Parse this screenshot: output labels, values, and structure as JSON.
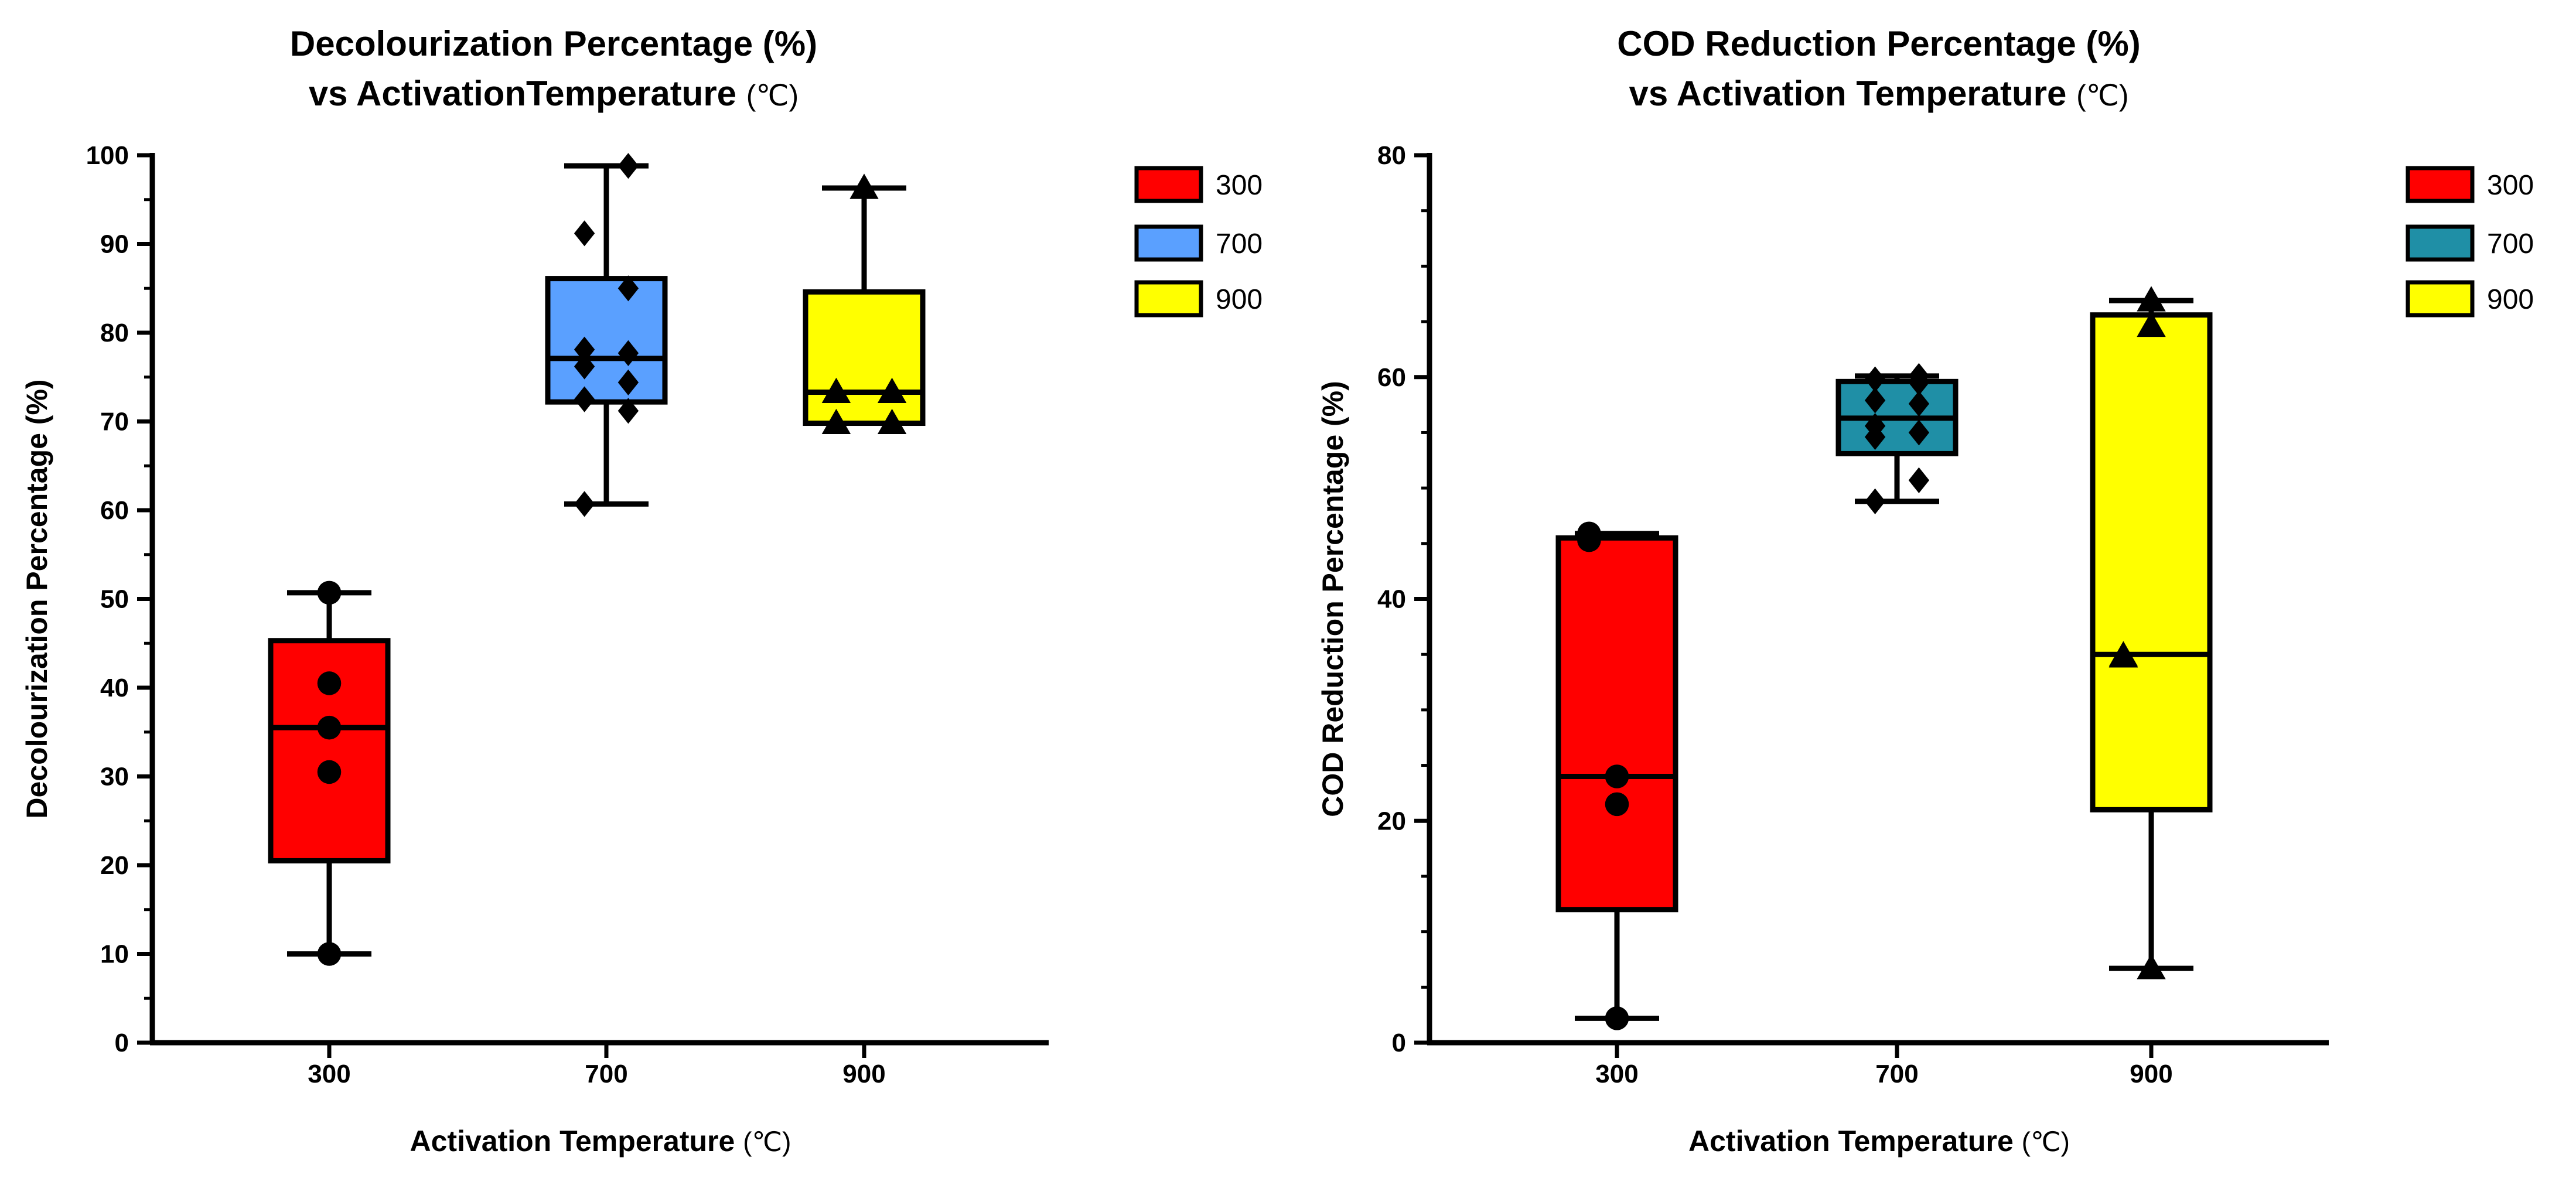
{
  "chart_data": [
    {
      "type": "box",
      "title": "Decolourization Percentage (%)",
      "title_line2": "vs ActivationTemperature",
      "title_unit": "(℃)",
      "xlabel": "Activation Temperature",
      "xlabel_unit": "(℃)",
      "ylabel": "Decolourization Percentage (%)",
      "ylim": [
        0,
        100
      ],
      "yticks": [
        "0",
        "10",
        "20",
        "30",
        "40",
        "50",
        "60",
        "70",
        "80",
        "90",
        "100"
      ],
      "categories": [
        "300",
        "700",
        "900"
      ],
      "legend": [
        {
          "label": "300",
          "color": "#ff0000"
        },
        {
          "label": "700",
          "color": "#5aa0ff"
        },
        {
          "label": "900",
          "color": "#ffff00"
        }
      ],
      "series": [
        {
          "name": "300",
          "color": "#ff0000",
          "marker": "circle",
          "min": 10,
          "q1": 20.5,
          "median": 35.5,
          "q3": 45.3,
          "max": 50.7,
          "points": [
            10,
            30.5,
            35.5,
            40.5,
            50.7
          ]
        },
        {
          "name": "700",
          "color": "#5aa0ff",
          "marker": "diamond",
          "min": 60.7,
          "q1": 72.2,
          "median": 77.1,
          "q3": 86.1,
          "max": 98.8,
          "points": [
            60.7,
            71.2,
            72.5,
            74.4,
            76.2,
            77.7,
            78.1,
            85,
            91.2,
            98.8
          ]
        },
        {
          "name": "900",
          "color": "#ffff00",
          "marker": "triangle",
          "min": 69.8,
          "q1": 69.8,
          "median": 73.3,
          "q3": 84.6,
          "max": 96.3,
          "points": [
            69.8,
            69.8,
            73.3,
            73.3,
            96.3
          ]
        }
      ]
    },
    {
      "type": "box",
      "title": "COD Reduction Percentage (%)",
      "title_line2": "vs Activation Temperature",
      "title_unit": "(℃)",
      "xlabel": "Activation Temperature",
      "xlabel_unit": "(℃)",
      "ylabel": "COD Reduction Percentage (%)",
      "ylim": [
        0,
        80
      ],
      "yticks": [
        "0",
        "20",
        "40",
        "60",
        "80"
      ],
      "categories": [
        "300",
        "700",
        "900"
      ],
      "legend": [
        {
          "label": "300",
          "color": "#ff0000"
        },
        {
          "label": "700",
          "color": "#1f8fa6"
        },
        {
          "label": "900",
          "color": "#ffff00"
        }
      ],
      "series": [
        {
          "name": "300",
          "color": "#ff0000",
          "marker": "circle",
          "min": 2.2,
          "q1": 12,
          "median": 24,
          "q3": 45.5,
          "max": 45.9,
          "points": [
            2.2,
            21.5,
            24,
            45.3,
            45.9
          ]
        },
        {
          "name": "700",
          "color": "#1f8fa6",
          "marker": "diamond",
          "min": 48.8,
          "q1": 53.1,
          "median": 56.3,
          "q3": 59.6,
          "max": 60.1,
          "points": [
            48.8,
            50.7,
            54.6,
            55,
            55.6,
            57.6,
            57.9,
            59.5,
            59.8,
            60.1
          ]
        },
        {
          "name": "900",
          "color": "#ffff00",
          "marker": "triangle",
          "min": 6.7,
          "q1": 21,
          "median": 35,
          "q3": 65.6,
          "max": 66.9,
          "points": [
            6.7,
            34.8,
            34.9,
            64.6,
            66.9
          ]
        }
      ]
    }
  ]
}
